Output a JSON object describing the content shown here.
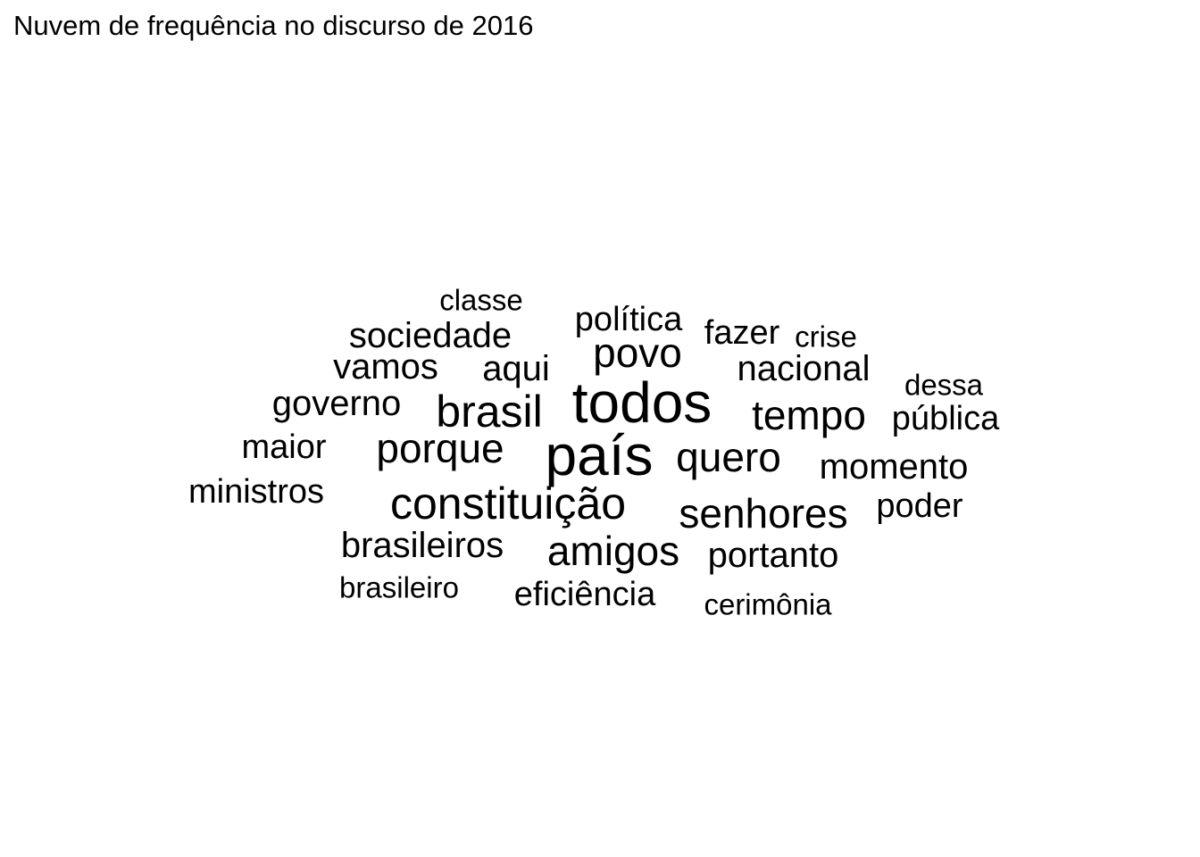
{
  "title": "Nuvem de frequência no discurso de 2016",
  "chart_data": {
    "type": "wordcloud",
    "title": "Nuvem de frequência no discurso de 2016",
    "color": "#000000",
    "words": [
      {
        "text": "país",
        "weight": 10
      },
      {
        "text": "todos",
        "weight": 10
      },
      {
        "text": "constituição",
        "weight": 8
      },
      {
        "text": "brasil",
        "weight": 8
      },
      {
        "text": "senhores",
        "weight": 7
      },
      {
        "text": "tempo",
        "weight": 7
      },
      {
        "text": "porque",
        "weight": 7
      },
      {
        "text": "amigos",
        "weight": 7
      },
      {
        "text": "quero",
        "weight": 7
      },
      {
        "text": "povo",
        "weight": 7
      },
      {
        "text": "aqui",
        "weight": 6
      },
      {
        "text": "nacional",
        "weight": 6
      },
      {
        "text": "sociedade",
        "weight": 6
      },
      {
        "text": "momento",
        "weight": 6
      },
      {
        "text": "governo",
        "weight": 6
      },
      {
        "text": "portanto",
        "weight": 6
      },
      {
        "text": "vamos",
        "weight": 6
      },
      {
        "text": "brasileiros",
        "weight": 6
      },
      {
        "text": "política",
        "weight": 5
      },
      {
        "text": "fazer",
        "weight": 5
      },
      {
        "text": "pública",
        "weight": 5
      },
      {
        "text": "eficiência",
        "weight": 5
      },
      {
        "text": "poder",
        "weight": 5
      },
      {
        "text": "maior",
        "weight": 5
      },
      {
        "text": "ministros",
        "weight": 5
      },
      {
        "text": "classe",
        "weight": 4
      },
      {
        "text": "crise",
        "weight": 4
      },
      {
        "text": "dessa",
        "weight": 4
      },
      {
        "text": "brasileiro",
        "weight": 4
      },
      {
        "text": "cerimônia",
        "weight": 4
      }
    ]
  }
}
